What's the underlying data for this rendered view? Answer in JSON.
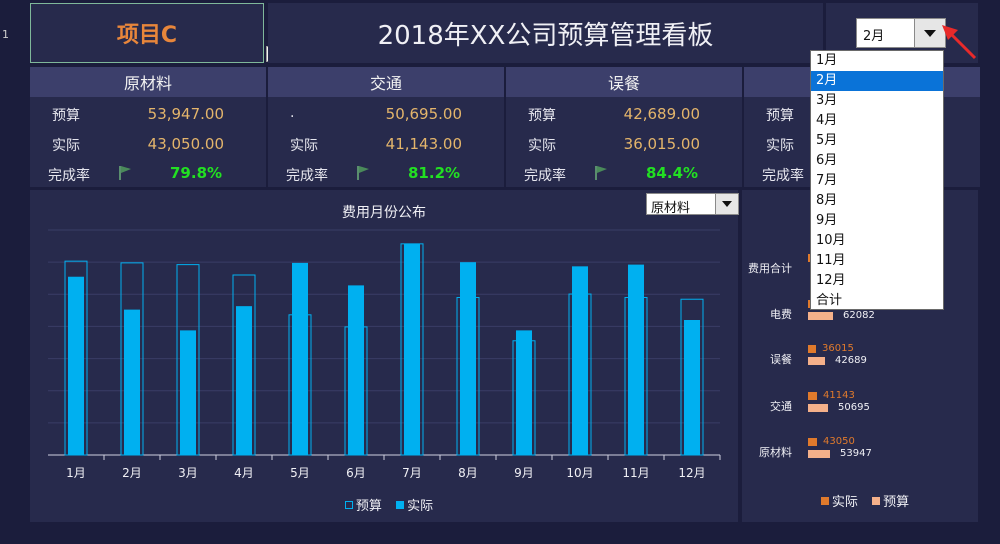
{
  "sheet": {
    "row_number": "1"
  },
  "header": {
    "project": "项目C",
    "title": "2018年XX公司预算管理看板",
    "month_value": "2月"
  },
  "cards": [
    {
      "name": "原材料",
      "budget_label": "预算",
      "budget": "53,947.00",
      "actual_label": "实际",
      "actual": "43,050.00",
      "rate_label": "完成率",
      "rate": "79.8%"
    },
    {
      "name": "交通",
      "budget_label": ".",
      "budget": "50,695.00",
      "actual_label": "实际",
      "actual": "41,143.00",
      "rate_label": "完成率",
      "rate": "81.2%"
    },
    {
      "name": "误餐",
      "budget_label": "预算",
      "budget": "42,689.00",
      "actual_label": "实际",
      "actual": "36,015.00",
      "rate_label": "完成率",
      "rate": "84.4%"
    },
    {
      "name": "",
      "budget_label": "预算",
      "budget": "",
      "actual_label": "实际",
      "actual": "",
      "rate_label": "完成率",
      "rate": ""
    }
  ],
  "colors": {
    "budget_bar": "#00b0f0",
    "actual_bar": "#00b0f0",
    "side_actual": "#e07a2c",
    "side_budget": "#f4b08a",
    "rate_green": "#22e022",
    "accent_orange": "#e8863b"
  },
  "chart_data": {
    "type": "bar",
    "title": "费用月份公布",
    "category_select": "原材料",
    "categories": [
      "1月",
      "2月",
      "3月",
      "4月",
      "5月",
      "6月",
      "7月",
      "8月",
      "9月",
      "10月",
      "11月",
      "12月"
    ],
    "series": [
      {
        "name": "预算",
        "style": "outline",
        "values": [
          56000,
          55500,
          55000,
          52000,
          40500,
          37000,
          61000,
          45500,
          33000,
          46500,
          45500,
          45000
        ]
      },
      {
        "name": "实际",
        "style": "filled",
        "values": [
          51500,
          42000,
          36000,
          43000,
          55500,
          49000,
          61000,
          55700,
          36000,
          54500,
          55000,
          39000
        ]
      }
    ],
    "ylim": [
      0,
      65000
    ],
    "grid": true,
    "legend": "bottom-center"
  },
  "side_chart": {
    "type": "bar",
    "orientation": "horizontal",
    "categories": [
      "费用合计",
      "电费",
      "误餐",
      "交通",
      "原材料"
    ],
    "series": [
      {
        "name": "实际",
        "values": [
          null,
          null,
          36015,
          41143,
          43050
        ]
      },
      {
        "name": "预算",
        "values": [
          null,
          62082,
          42689,
          50695,
          53947
        ]
      }
    ],
    "legend": "bottom-center"
  },
  "month_dropdown": {
    "options": [
      "1月",
      "2月",
      "3月",
      "4月",
      "5月",
      "6月",
      "7月",
      "8月",
      "9月",
      "10月",
      "11月",
      "12月",
      "合计"
    ],
    "selected_index": 1
  }
}
